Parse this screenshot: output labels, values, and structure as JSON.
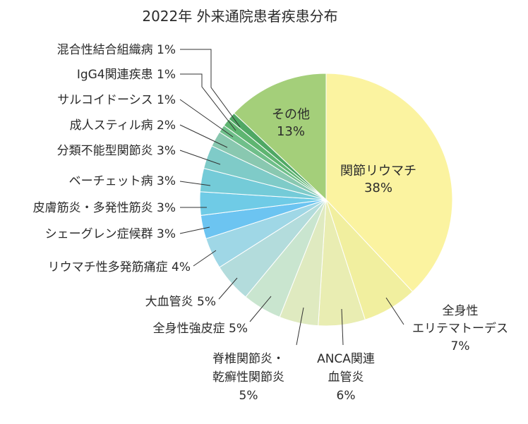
{
  "chart_data": {
    "type": "pie",
    "title": "2022年 外来通院患者疾患分布",
    "slices": [
      {
        "label": [
          "関節リウマチ"
        ],
        "value": 38,
        "pct": "38%",
        "color": "#fbf3a0"
      },
      {
        "label": [
          "全身性",
          "エリテマトーデス"
        ],
        "value": 7,
        "pct": "7%",
        "color": "#f1ef9f"
      },
      {
        "label": [
          "ANCA関連",
          "血管炎"
        ],
        "value": 6,
        "pct": "6%",
        "color": "#e9edb2"
      },
      {
        "label": [
          "脊椎関節炎・",
          "乾癬性関節炎"
        ],
        "value": 5,
        "pct": "5%",
        "color": "#dfeac0"
      },
      {
        "label": [
          "全身性強皮症"
        ],
        "value": 5,
        "pct": "5%",
        "color": "#c9e5cf"
      },
      {
        "label": [
          "大血管炎"
        ],
        "value": 5,
        "pct": "5%",
        "color": "#b3dcdc"
      },
      {
        "label": [
          "リウマチ性多発筋痛症"
        ],
        "value": 4,
        "pct": "4%",
        "color": "#9fd7e6"
      },
      {
        "label": [
          "シェーグレン症候群"
        ],
        "value": 3,
        "pct": "3%",
        "color": "#6cc4f1"
      },
      {
        "label": [
          "皮膚筋炎・多発性筋炎"
        ],
        "value": 3,
        "pct": "3%",
        "color": "#6fcbe6"
      },
      {
        "label": [
          "ベーチェット病"
        ],
        "value": 3,
        "pct": "3%",
        "color": "#74cbd8"
      },
      {
        "label": [
          "分類不能型関節炎"
        ],
        "value": 3,
        "pct": "3%",
        "color": "#7fcbc8"
      },
      {
        "label": [
          "成人スティル病"
        ],
        "value": 2,
        "pct": "2%",
        "color": "#89c8b0"
      },
      {
        "label": [
          "サルコイドーシス"
        ],
        "value": 1,
        "pct": "1%",
        "color": "#6fbf8a"
      },
      {
        "label": [
          "IgG4関連疾患"
        ],
        "value": 1,
        "pct": "1%",
        "color": "#5fb571"
      },
      {
        "label": [
          "混合性結合組織病"
        ],
        "value": 1,
        "pct": "1%",
        "color": "#4fa864"
      },
      {
        "label": [
          "その他"
        ],
        "value": 13,
        "pct": "13%",
        "color": "#a4cf7a"
      }
    ]
  }
}
